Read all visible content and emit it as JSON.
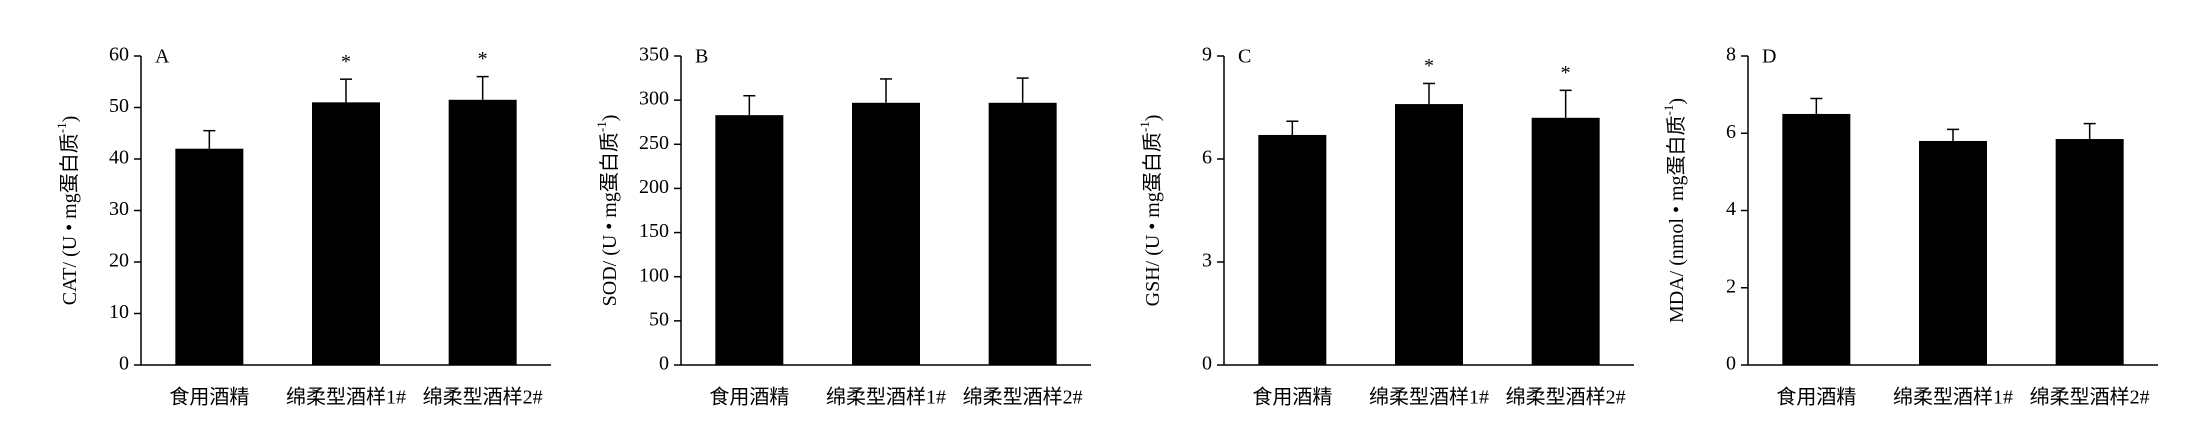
{
  "chart_data": [
    {
      "type": "bar",
      "panel_label": "A",
      "ylabel": [
        "CAT/ (U • mg蛋白质",
        "-1",
        ")"
      ],
      "categories": [
        "食用酒精",
        "绵柔型酒样1#",
        "绵柔型酒样2#"
      ],
      "values": [
        42,
        51,
        51.5
      ],
      "errors": [
        3.5,
        4.5,
        4.5
      ],
      "significance": [
        null,
        "*",
        "*"
      ],
      "color": "#000000",
      "ylim": [
        0,
        60
      ],
      "yticks": [
        0,
        10,
        20,
        30,
        40,
        50,
        60
      ]
    },
    {
      "type": "bar",
      "panel_label": "B",
      "ylabel": [
        "SOD/ (U • mg蛋白质",
        "-1",
        ")"
      ],
      "categories": [
        "食用酒精",
        "绵柔型酒样1#",
        "绵柔型酒样2#"
      ],
      "values": [
        283,
        297,
        297
      ],
      "errors": [
        22,
        27,
        28
      ],
      "significance": [
        null,
        null,
        null
      ],
      "color": "#000000",
      "ylim": [
        0,
        350
      ],
      "yticks": [
        0,
        50,
        100,
        150,
        200,
        250,
        300,
        350
      ]
    },
    {
      "type": "bar",
      "panel_label": "C",
      "ylabel": [
        "GSH/ (U • mg蛋白质",
        "-1",
        ")"
      ],
      "categories": [
        "食用酒精",
        "绵柔型酒样1#",
        "绵柔型酒样2#"
      ],
      "values": [
        6.7,
        7.6,
        7.2
      ],
      "errors": [
        0.4,
        0.6,
        0.8
      ],
      "significance": [
        null,
        "*",
        "*"
      ],
      "color": "#000000",
      "ylim": [
        0,
        9
      ],
      "yticks": [
        0,
        3,
        6,
        9
      ]
    },
    {
      "type": "bar",
      "panel_label": "D",
      "ylabel": [
        "MDA/ (nmol • mg蛋白质",
        "-1",
        ")"
      ],
      "categories": [
        "食用酒精",
        "绵柔型酒样1#",
        "绵柔型酒样2#"
      ],
      "values": [
        6.5,
        5.8,
        5.85
      ],
      "errors": [
        0.4,
        0.3,
        0.4
      ],
      "significance": [
        null,
        null,
        null
      ],
      "color": "#000000",
      "ylim": [
        0,
        8
      ],
      "yticks": [
        0,
        2,
        4,
        6,
        8
      ]
    }
  ]
}
